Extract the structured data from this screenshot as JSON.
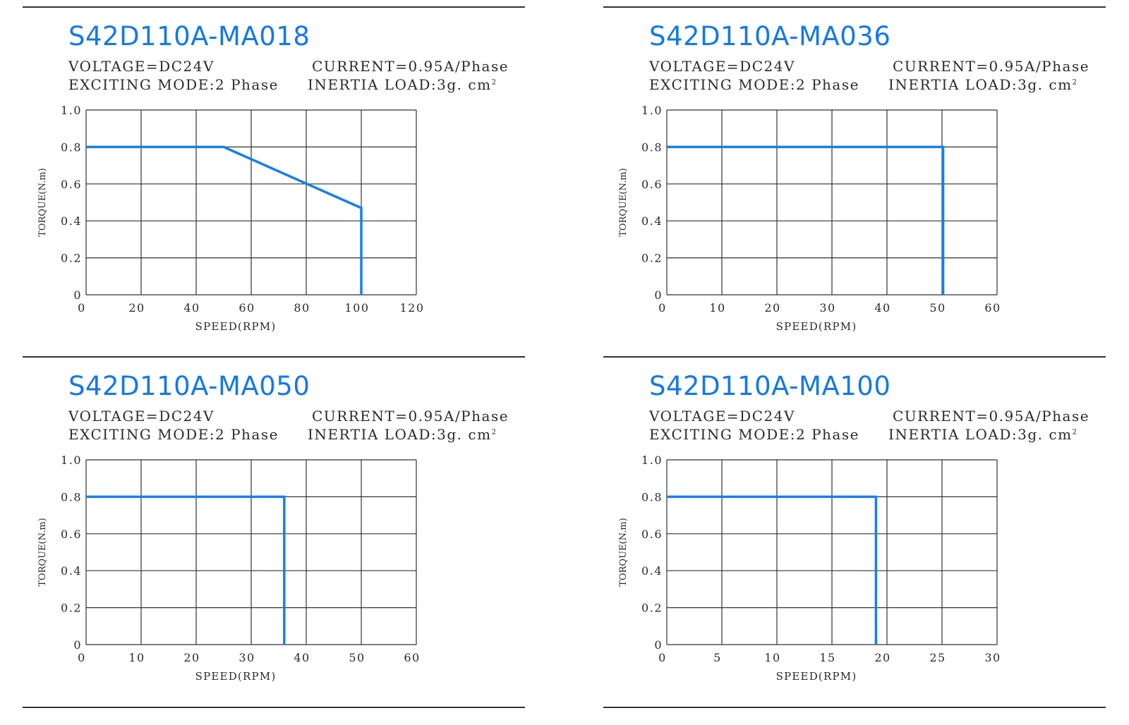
{
  "panels": [
    {
      "model": "S42D110A-MA018",
      "voltage": "VOLTAGE=DC24V",
      "current": "CURRENT=0.95A/Phase",
      "exciting_mode": "EXCITING MODE:2 Phase",
      "inertia_load": "INERTIA LOAD:3g. cm",
      "inertia_sup": "2"
    },
    {
      "model": "S42D110A-MA036",
      "voltage": "VOLTAGE=DC24V",
      "current": "CURRENT=0.95A/Phase",
      "exciting_mode": "EXCITING MODE:2 Phase",
      "inertia_load": "INERTIA LOAD:3g. cm",
      "inertia_sup": "2"
    },
    {
      "model": "S42D110A-MA050",
      "voltage": "VOLTAGE=DC24V",
      "current": "CURRENT=0.95A/Phase",
      "exciting_mode": "EXCITING MODE:2 Phase",
      "inertia_load": "INERTIA LOAD:3g. cm",
      "inertia_sup": "2"
    },
    {
      "model": "S42D110A-MA100",
      "voltage": "VOLTAGE=DC24V",
      "current": "CURRENT=0.95A/Phase",
      "exciting_mode": "EXCITING MODE:2 Phase",
      "inertia_load": "INERTIA LOAD:3g. cm",
      "inertia_sup": "2"
    }
  ],
  "chart_data": [
    {
      "type": "line",
      "title": "S42D110A-MA018",
      "xlabel": "SPEED(RPM)",
      "ylabel": "TORQUE(N.m)",
      "xlim": [
        0,
        120
      ],
      "ylim": [
        0,
        1.0
      ],
      "xticks": [
        "0",
        "20",
        "40",
        "60",
        "80",
        "100",
        "120"
      ],
      "yticks": [
        "0",
        "0.2",
        "0.4",
        "0.6",
        "0.8",
        "1.0"
      ],
      "grid": true,
      "line_color": "#1a7ee8",
      "series": [
        {
          "x": [
            0,
            50,
            100,
            100
          ],
          "y": [
            0.8,
            0.8,
            0.47,
            0
          ]
        }
      ]
    },
    {
      "type": "line",
      "title": "S42D110A-MA036",
      "xlabel": "SPEED(RPM)",
      "ylabel": "TORQUE(N.m)",
      "xlim": [
        0,
        60
      ],
      "ylim": [
        0,
        1.0
      ],
      "xticks": [
        "0",
        "10",
        "20",
        "30",
        "40",
        "50",
        "60"
      ],
      "yticks": [
        "0",
        "0.2",
        "0.4",
        "0.6",
        "0.8",
        "1.0"
      ],
      "grid": true,
      "line_color": "#1a7ee8",
      "series": [
        {
          "x": [
            0,
            50.2,
            50.2
          ],
          "y": [
            0.8,
            0.8,
            0
          ]
        }
      ]
    },
    {
      "type": "line",
      "title": "S42D110A-MA050",
      "xlabel": "SPEED(RPM)",
      "ylabel": "TORQUE(N.m)",
      "xlim": [
        0,
        60
      ],
      "ylim": [
        0,
        1.0
      ],
      "xticks": [
        "0",
        "10",
        "20",
        "30",
        "40",
        "50",
        "60"
      ],
      "yticks": [
        "0",
        "0.2",
        "0.4",
        "0.6",
        "0.8",
        "1.0"
      ],
      "grid": true,
      "line_color": "#1a7ee8",
      "series": [
        {
          "x": [
            0,
            36,
            36
          ],
          "y": [
            0.8,
            0.8,
            0
          ]
        }
      ]
    },
    {
      "type": "line",
      "title": "S42D110A-MA100",
      "xlabel": "SPEED(RPM)",
      "ylabel": "TORQUE(N.m)",
      "xlim": [
        0,
        30
      ],
      "ylim": [
        0,
        1.0
      ],
      "xticks": [
        "0",
        "5",
        "10",
        "15",
        "20",
        "25",
        "30"
      ],
      "yticks": [
        "0",
        "0.2",
        "0.4",
        "0.6",
        "0.8",
        "1.0"
      ],
      "grid": true,
      "line_color": "#1a7ee8",
      "series": [
        {
          "x": [
            0,
            19,
            19
          ],
          "y": [
            0.8,
            0.8,
            0
          ]
        }
      ]
    }
  ]
}
